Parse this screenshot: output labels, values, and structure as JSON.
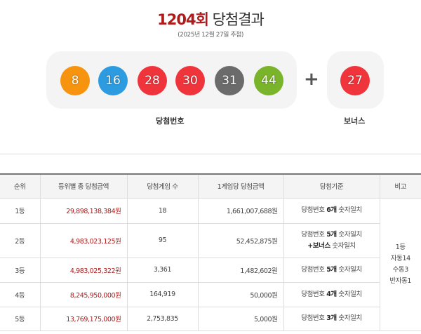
{
  "header": {
    "round": "1204회",
    "title": "당첨결과",
    "date": "(2025년 12월 27일 추첨)"
  },
  "numbers": {
    "label": "당첨번호",
    "balls": [
      {
        "n": "8",
        "color": "#f7940f"
      },
      {
        "n": "16",
        "color": "#2d9be0"
      },
      {
        "n": "28",
        "color": "#f0343b"
      },
      {
        "n": "30",
        "color": "#f0343b"
      },
      {
        "n": "31",
        "color": "#6b6b6b"
      },
      {
        "n": "44",
        "color": "#7ab42a"
      }
    ]
  },
  "bonus": {
    "label": "보너스",
    "n": "27",
    "color": "#f0343b"
  },
  "table": {
    "headers": [
      "순위",
      "등위별 총 당첨금액",
      "당첨게임 수",
      "1게임당 당첨금액",
      "당첨기준",
      "비고"
    ],
    "rows": [
      {
        "rank": "1등",
        "total": "29,898,138,384원",
        "count": "18",
        "per": "1,661,007,688원",
        "c1": "당첨번호 ",
        "c2": "6개",
        "c3": " 숫자일치"
      },
      {
        "rank": "2등",
        "total": "4,983,023,125원",
        "count": "95",
        "per": "52,452,875원",
        "c1": "당첨번호 ",
        "c2": "5개",
        "c3": " 숫자일치",
        "c4": "+보너스",
        "c5": " 숫자일치"
      },
      {
        "rank": "3등",
        "total": "4,983,025,322원",
        "count": "3,361",
        "per": "1,482,602원",
        "c1": "당첨번호 ",
        "c2": "5개",
        "c3": " 숫자일치"
      },
      {
        "rank": "4등",
        "total": "8,245,950,000원",
        "count": "164,919",
        "per": "50,000원",
        "c1": "당첨번호 ",
        "c2": "4개",
        "c3": " 숫자일치"
      },
      {
        "rank": "5등",
        "total": "13,769,175,000원",
        "count": "2,753,835",
        "per": "5,000원",
        "c1": "당첨번호 ",
        "c2": "3개",
        "c3": " 숫자일치"
      }
    ],
    "note": [
      "1등",
      "자동14",
      "수동3",
      "반자동1"
    ]
  }
}
